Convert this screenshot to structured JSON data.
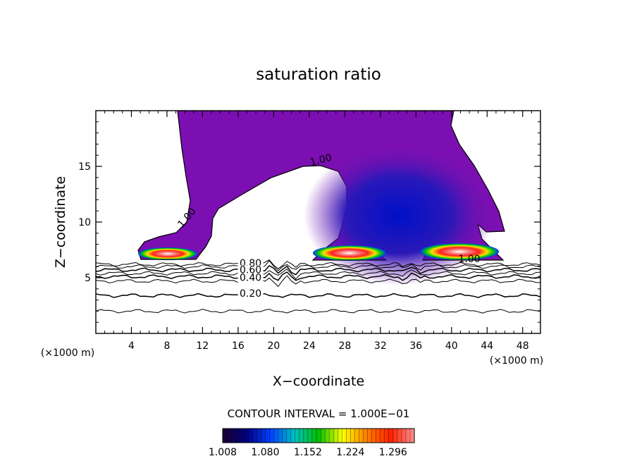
{
  "chart_data": {
    "type": "heatmap",
    "title": "saturation ratio",
    "xlabel": "X−coordinate",
    "ylabel": "Z−coordinate",
    "x_unit_left": "(×1000 m)",
    "x_unit_right": "(×1000 m)",
    "xlim": [
      0,
      50
    ],
    "ylim": [
      0,
      20
    ],
    "x_ticks": [
      4,
      8,
      12,
      16,
      20,
      24,
      28,
      32,
      36,
      40,
      44,
      48
    ],
    "y_ticks": [
      5,
      10,
      15
    ],
    "contour_interval_text": "CONTOUR INTERVAL = 1.000E−01",
    "colorbar_range": [
      1.008,
      1.332
    ],
    "colorbar_labels": [
      "1.008",
      "1.080",
      "1.152",
      "1.224",
      "1.296"
    ],
    "colorbar_colors": [
      "#1a0033",
      "#000080",
      "#0040ff",
      "#00c0c0",
      "#00c000",
      "#ffff00",
      "#ff8000",
      "#ff2000",
      "#ff9090"
    ],
    "contour_labels": [
      {
        "text": "1.00",
        "x": 25.4,
        "z": 15.3
      },
      {
        "text": "1.00",
        "x": 10.5,
        "z": 10.2
      },
      {
        "text": "1.00",
        "x": 42.0,
        "z": 6.4
      },
      {
        "text": "0.80",
        "x": 17.4,
        "z": 6.0
      },
      {
        "text": "0.60",
        "x": 17.4,
        "z": 5.4
      },
      {
        "text": "0.40",
        "x": 17.4,
        "z": 4.7
      },
      {
        "text": "0.20",
        "x": 17.4,
        "z": 3.3
      }
    ],
    "subsaturated_levels": [
      0.2,
      0.4,
      0.6,
      0.8
    ]
  }
}
